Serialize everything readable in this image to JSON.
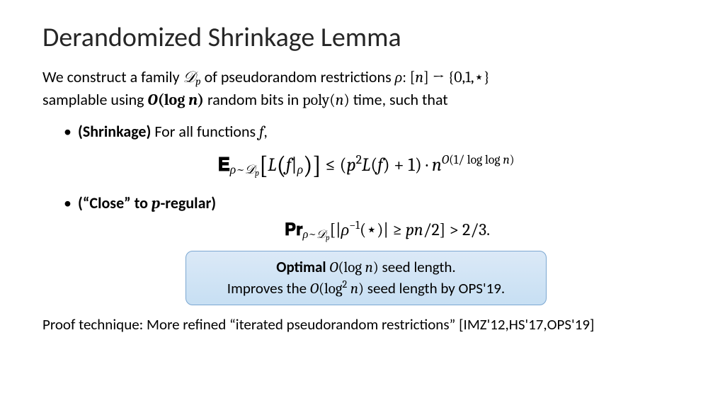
{
  "title": "Derandomized Shrinkage Lemma",
  "intro_part1": "We construct a family ",
  "intro_Dp": "𝒟",
  "intro_p": "p",
  "intro_part2": " of pseudorandom restrictions ",
  "intro_rho": "ρ",
  "intro_colon": ": [",
  "intro_n": "n",
  "intro_to": "] → {0,1,⋆}",
  "intro_part3": "samplable using ",
  "intro_Ologn_O": "O",
  "intro_Ologn_log": "(log ",
  "intro_Ologn_n": "n",
  "intro_Ologn_close": ")",
  "intro_part4": " random bits in ",
  "intro_poly": "poly(",
  "intro_polyn": "n",
  "intro_polyclose": ")",
  "intro_part5": " time, such that",
  "bullet1_label": "(Shrinkage)",
  "bullet1_text": " For all functions ",
  "bullet1_f": "f",
  "bullet1_comma": ",",
  "formula1": "𝐄",
  "formula1_sub1": "ρ",
  "formula1_sub2": "~",
  "formula1_sub3": "𝒟",
  "formula1_sub4": "p",
  "formula1_L1a": "L",
  "formula1_L1b": "f",
  "formula1_pipe": "|",
  "formula1_rho": "ρ",
  "formula1_mid": " ≤ (",
  "formula1_p2": "p",
  "formula1_sq": "2",
  "formula1_L2a": "L",
  "formula1_L2b": "f",
  "formula1_plus": ") + 1) · ",
  "formula1_n": "n",
  "formula1_exp_O": "O",
  "formula1_exp_rest": "(1/ log log ",
  "formula1_exp_n": "n",
  "formula1_exp_close": ")",
  "bullet2_label": "(“Close” to ",
  "bullet2_p": "p",
  "bullet2_label2": "-regular)",
  "formula2_Pr": "𝐏𝐫",
  "formula2_sub1": "ρ",
  "formula2_sub2": "~",
  "formula2_sub3": "𝒟",
  "formula2_sub4": "p",
  "formula2_body_open": "[|",
  "formula2_rho": "ρ",
  "formula2_inv": "−1",
  "formula2_star": "(⋆)| ≥ ",
  "formula2_pn": "pn",
  "formula2_half": "/2] > 2/3.",
  "callout_l1a": "Optimal ",
  "callout_l1_O": "O",
  "callout_l1_log": "(log ",
  "callout_l1_n": "n",
  "callout_l1_close": ")",
  "callout_l1b": " seed length.",
  "callout_l2a": "Improves the ",
  "callout_l2_O": "O",
  "callout_l2_log": "(log",
  "callout_l2_sq": "2",
  "callout_l2_sp": " ",
  "callout_l2_n": "n",
  "callout_l2_close": ")",
  "callout_l2b": " seed length by OPS'19.",
  "footer": "Proof technique: More refined “iterated pseudorandom restrictions” [IMZ'12,HS'17,OPS'19]",
  "colors": {
    "bg": "#ffffff",
    "text": "#000000",
    "title": "#262626",
    "callout_bg_top": "#dbe9f7",
    "callout_bg_bot": "#c7dff3",
    "callout_border": "#7ba7d1"
  }
}
